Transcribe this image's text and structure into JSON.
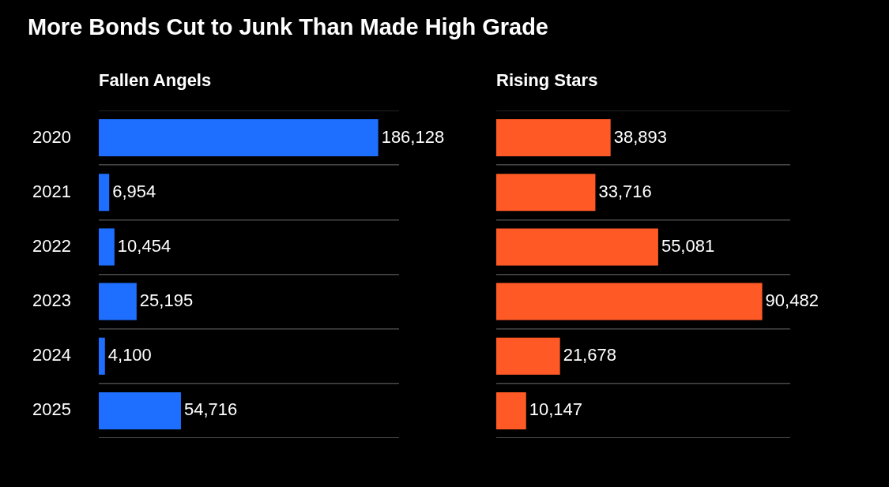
{
  "chart_data": [
    {
      "type": "bar",
      "orientation": "horizontal",
      "title": "More Bonds Cut to Junk Than Made High Grade",
      "subtitle": "Fallen Angels",
      "categories": [
        "2020",
        "2021",
        "2022",
        "2023",
        "2024",
        "2025"
      ],
      "series": [
        {
          "color": "#1e6fff",
          "values": [
            186128,
            6954,
            10454,
            25195,
            4100,
            54716
          ],
          "value_labels": [
            "186,128",
            "6,954",
            "10,454",
            "25,195",
            "4,100",
            "54,716"
          ]
        }
      ],
      "grid": "y"
    },
    {
      "type": "bar",
      "orientation": "horizontal",
      "subtitle": "Rising Stars",
      "categories": [
        "2020",
        "2021",
        "2022",
        "2023",
        "2024",
        "2025"
      ],
      "series": [
        {
          "color": "#ff5a26",
          "values": [
            38893,
            33716,
            55081,
            90482,
            21678,
            10147
          ],
          "value_labels": [
            "38,893",
            "33,716",
            "55,081",
            "90,482",
            "21,678",
            "10,147"
          ]
        }
      ],
      "grid": "y",
      "tick_labels": false
    }
  ]
}
